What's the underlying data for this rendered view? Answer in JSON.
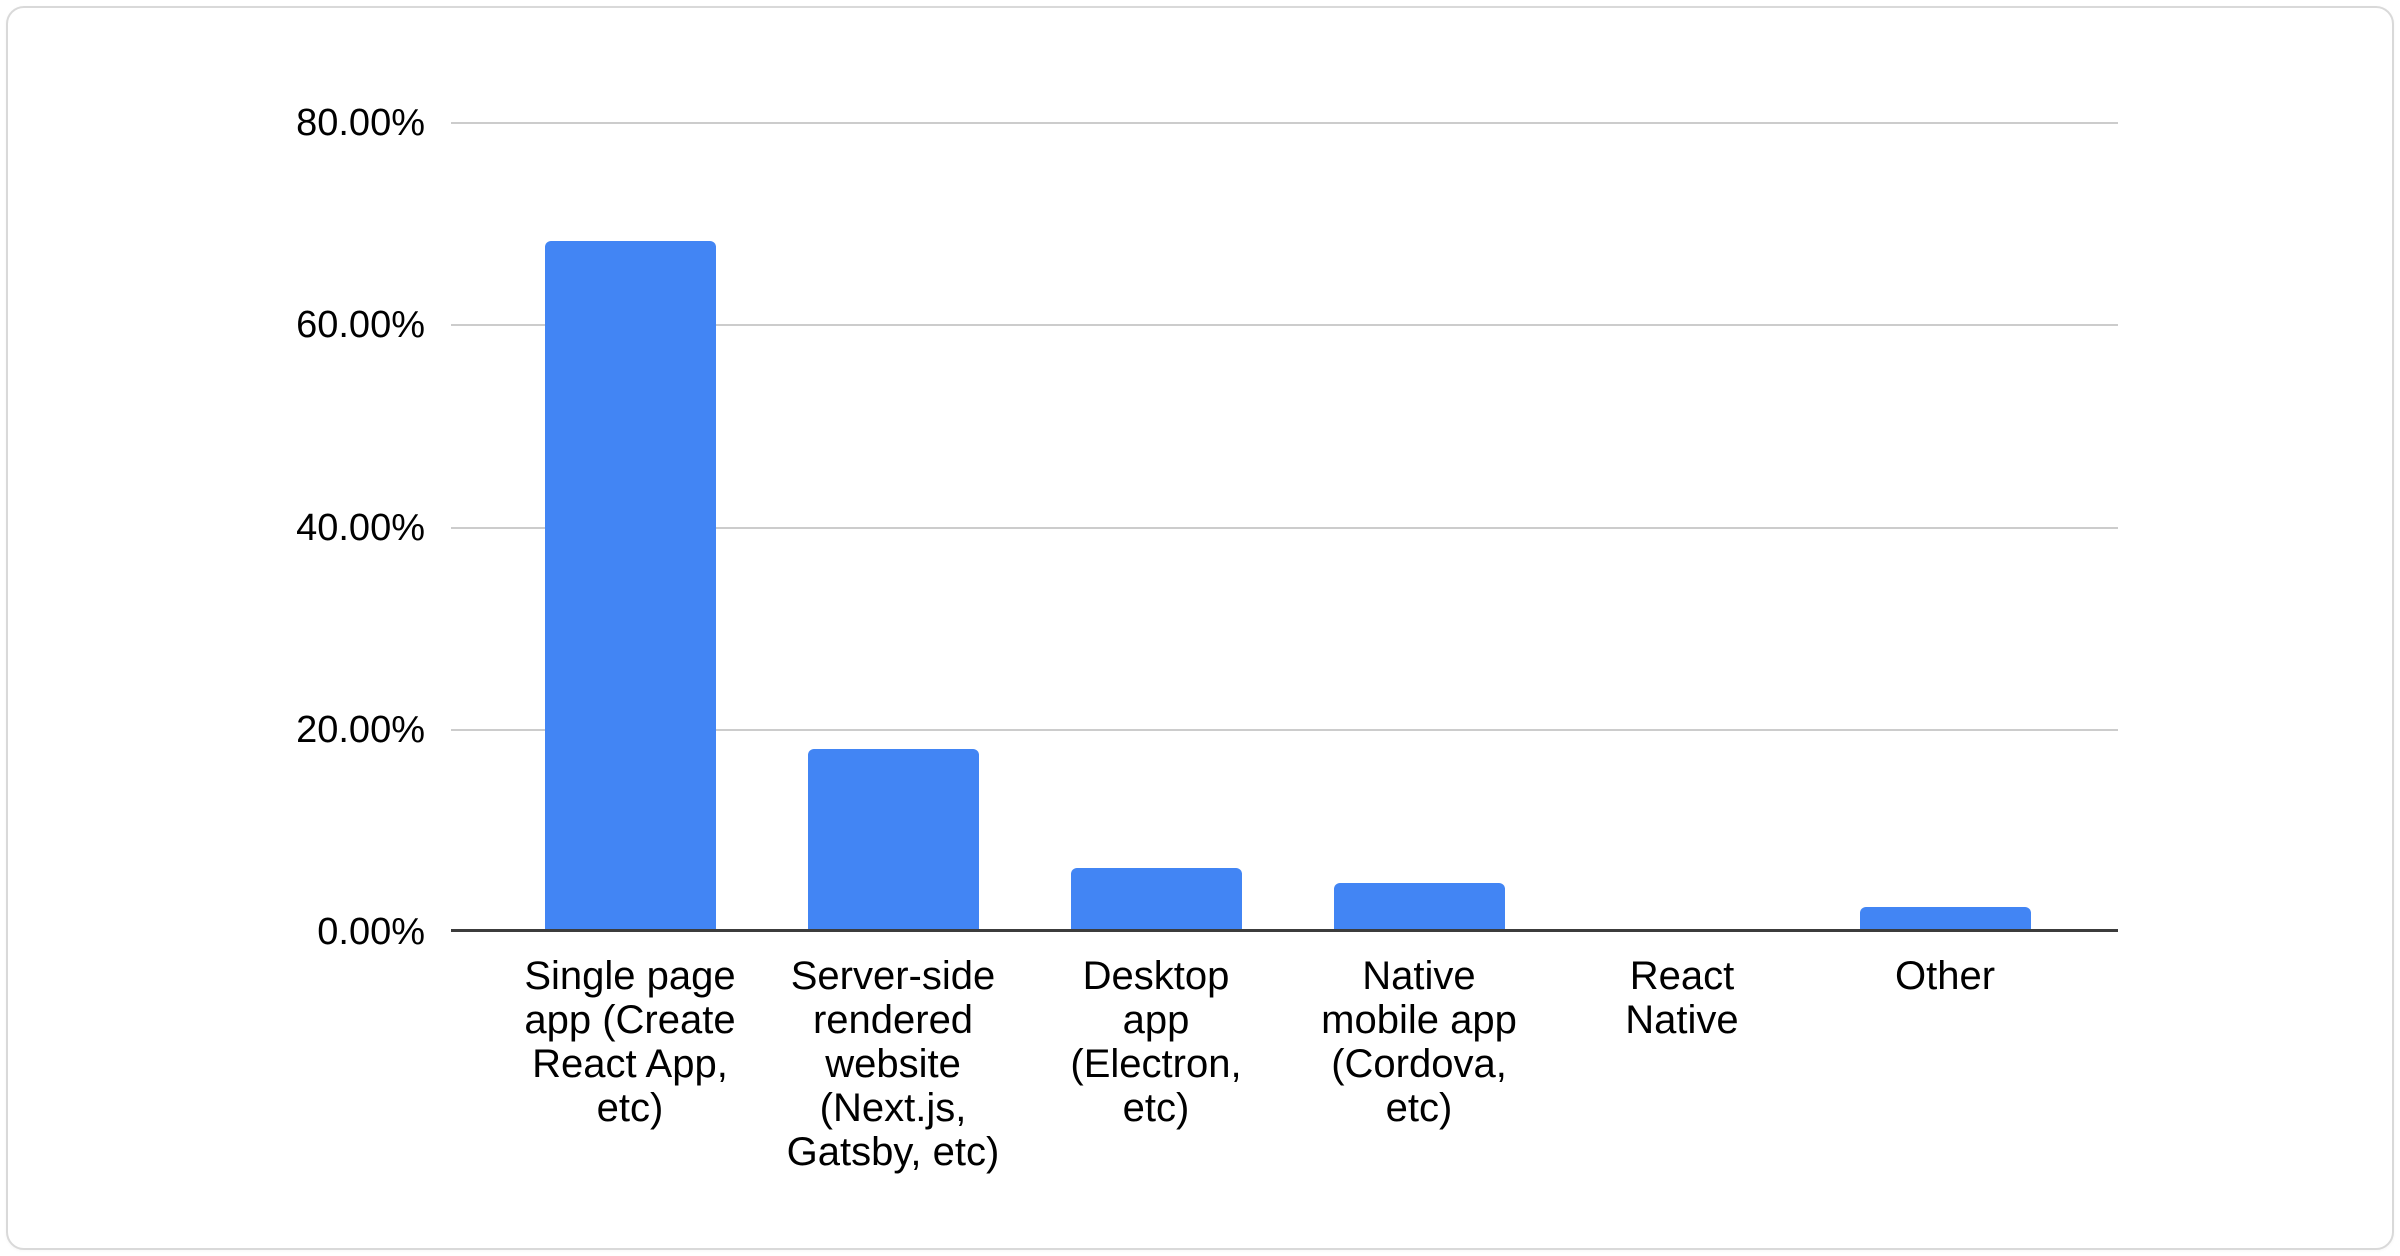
{
  "chart_data": {
    "type": "bar",
    "title": "",
    "xlabel": "",
    "ylabel": "",
    "legend_position": "none",
    "grid": true,
    "bar_color": "#4285f4",
    "categories": [
      "Single page app (Create React App, etc)",
      "Server-side rendered website (Next.js, Gatsby, etc)",
      "Desktop app (Electron, etc)",
      "Native mobile app (Cordova, etc)",
      "React Native",
      "Other"
    ],
    "category_label_lines": [
      [
        "Single page",
        "app (Create",
        "React App,",
        "etc)"
      ],
      [
        "Server-side",
        "rendered",
        "website",
        "(Next.js,",
        "Gatsby, etc)"
      ],
      [
        "Desktop",
        "app",
        "(Electron,",
        "etc)"
      ],
      [
        "Native",
        "mobile app",
        "(Cordova,",
        "etc)"
      ],
      [
        "React",
        "Native"
      ],
      [
        "Other"
      ]
    ],
    "values": [
      68.3,
      18.1,
      6.3,
      4.8,
      0.0,
      2.5
    ],
    "y_axis": {
      "min": 0,
      "max": 80,
      "tick_values": [
        80,
        60,
        40,
        20,
        0
      ],
      "tick_labels": [
        "80.00%",
        "60.00%",
        "40.00%",
        "20.00%",
        "0.00%"
      ]
    }
  },
  "ui": {
    "card_background": "#ffffff",
    "card_border_color": "#d9d9d9",
    "gridline_color": "#cccccc",
    "axis_line_color": "#3c3c3c",
    "label_color": "#000000"
  }
}
